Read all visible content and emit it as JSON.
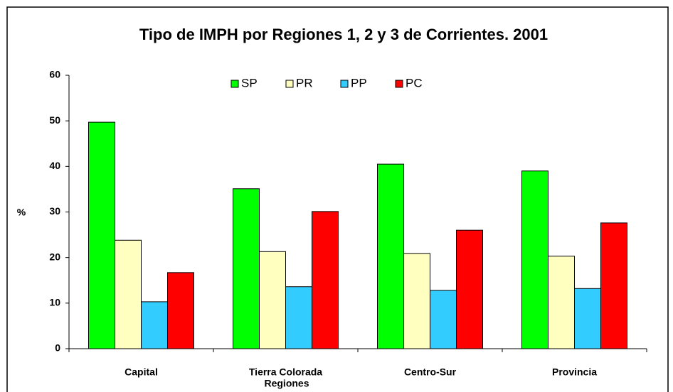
{
  "chart_data": {
    "type": "bar",
    "title": "Tipo de IMPH por Regiones 1, 2 y 3 de Corrientes. 2001",
    "x_label": "Regiones",
    "y_label": "%",
    "categories": [
      "Capital",
      "Tierra Colorada",
      "Centro-Sur",
      "Provincia"
    ],
    "series": [
      {
        "name": "SP",
        "color": "#00ff00",
        "values": [
          49.7,
          35.1,
          40.5,
          39.0
        ]
      },
      {
        "name": "PR",
        "color": "#ffffc0",
        "values": [
          23.8,
          21.3,
          20.9,
          20.3
        ]
      },
      {
        "name": "PP",
        "color": "#33ccff",
        "values": [
          10.3,
          13.6,
          12.8,
          13.2
        ]
      },
      {
        "name": "PC",
        "color": "#ff0000",
        "values": [
          16.7,
          30.1,
          26.0,
          27.6
        ]
      }
    ],
    "ylim": [
      0,
      60
    ],
    "yticks": [
      0,
      10,
      20,
      30,
      40,
      50,
      60
    ],
    "grid": false,
    "legend": "top"
  }
}
